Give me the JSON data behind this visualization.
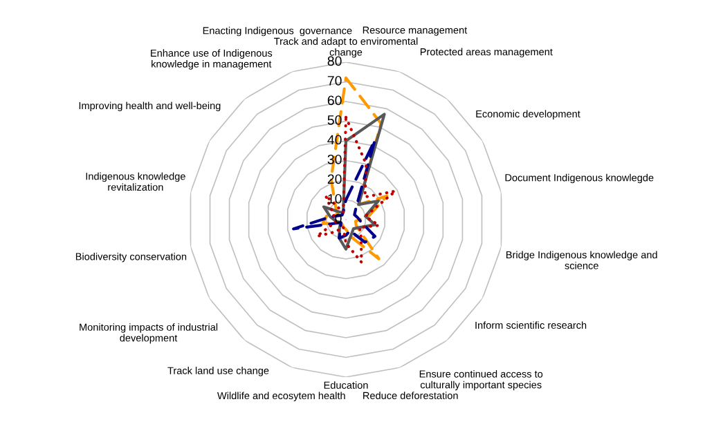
{
  "chart_data": {
    "type": "radar",
    "categories": [
      "Track and adapt to enviromental\nchange",
      "Resource management",
      "Protected areas management",
      "Economic development",
      "Document Indigenous knowlegde",
      "Bridge Indigenous knowledge and\nscience",
      "Inform scientific research",
      "Ensure continued access to\nculturally important species",
      "Reduce deforestation",
      "Education",
      "Wildlife and ecosytem health",
      "Track land use change",
      "Monitoring impacts of industrial\ndevelopment",
      "Biodiversity conservation",
      "Indigenous knowledge\nrevitalization",
      "Improving health and well-being",
      "Enhance use of Indigenous\nknowledge in management",
      "Enacting Indigenous  governance"
    ],
    "ylim": [
      0,
      80
    ],
    "yticks": [
      0,
      10,
      20,
      30,
      40,
      50,
      60,
      70,
      80
    ],
    "grid": true,
    "marker": "none",
    "series": [
      {
        "color": "#ff9900",
        "line_style": "dashed",
        "values": [
          72,
          52,
          10,
          24,
          12,
          5,
          6,
          26,
          10,
          5,
          4,
          3,
          3,
          12,
          10,
          5,
          8,
          22
        ]
      },
      {
        "color": "#595959",
        "line_style": "solid",
        "values": [
          40,
          57,
          10,
          19,
          10,
          15,
          8,
          6,
          8,
          15,
          10,
          5,
          3,
          5,
          8,
          13,
          5,
          4
        ]
      },
      {
        "color": "#00008b",
        "line_style": "dashed",
        "values": [
          10,
          43,
          8,
          5,
          6,
          8,
          17,
          15,
          6,
          8,
          10,
          4,
          3,
          27,
          8,
          4,
          3,
          4
        ]
      },
      {
        "color": "#c00000",
        "line_style": "dotted",
        "values": [
          52,
          30,
          15,
          29,
          10,
          17,
          8,
          12,
          23,
          12,
          4,
          8,
          17,
          5,
          6,
          8,
          16,
          4
        ]
      }
    ]
  }
}
